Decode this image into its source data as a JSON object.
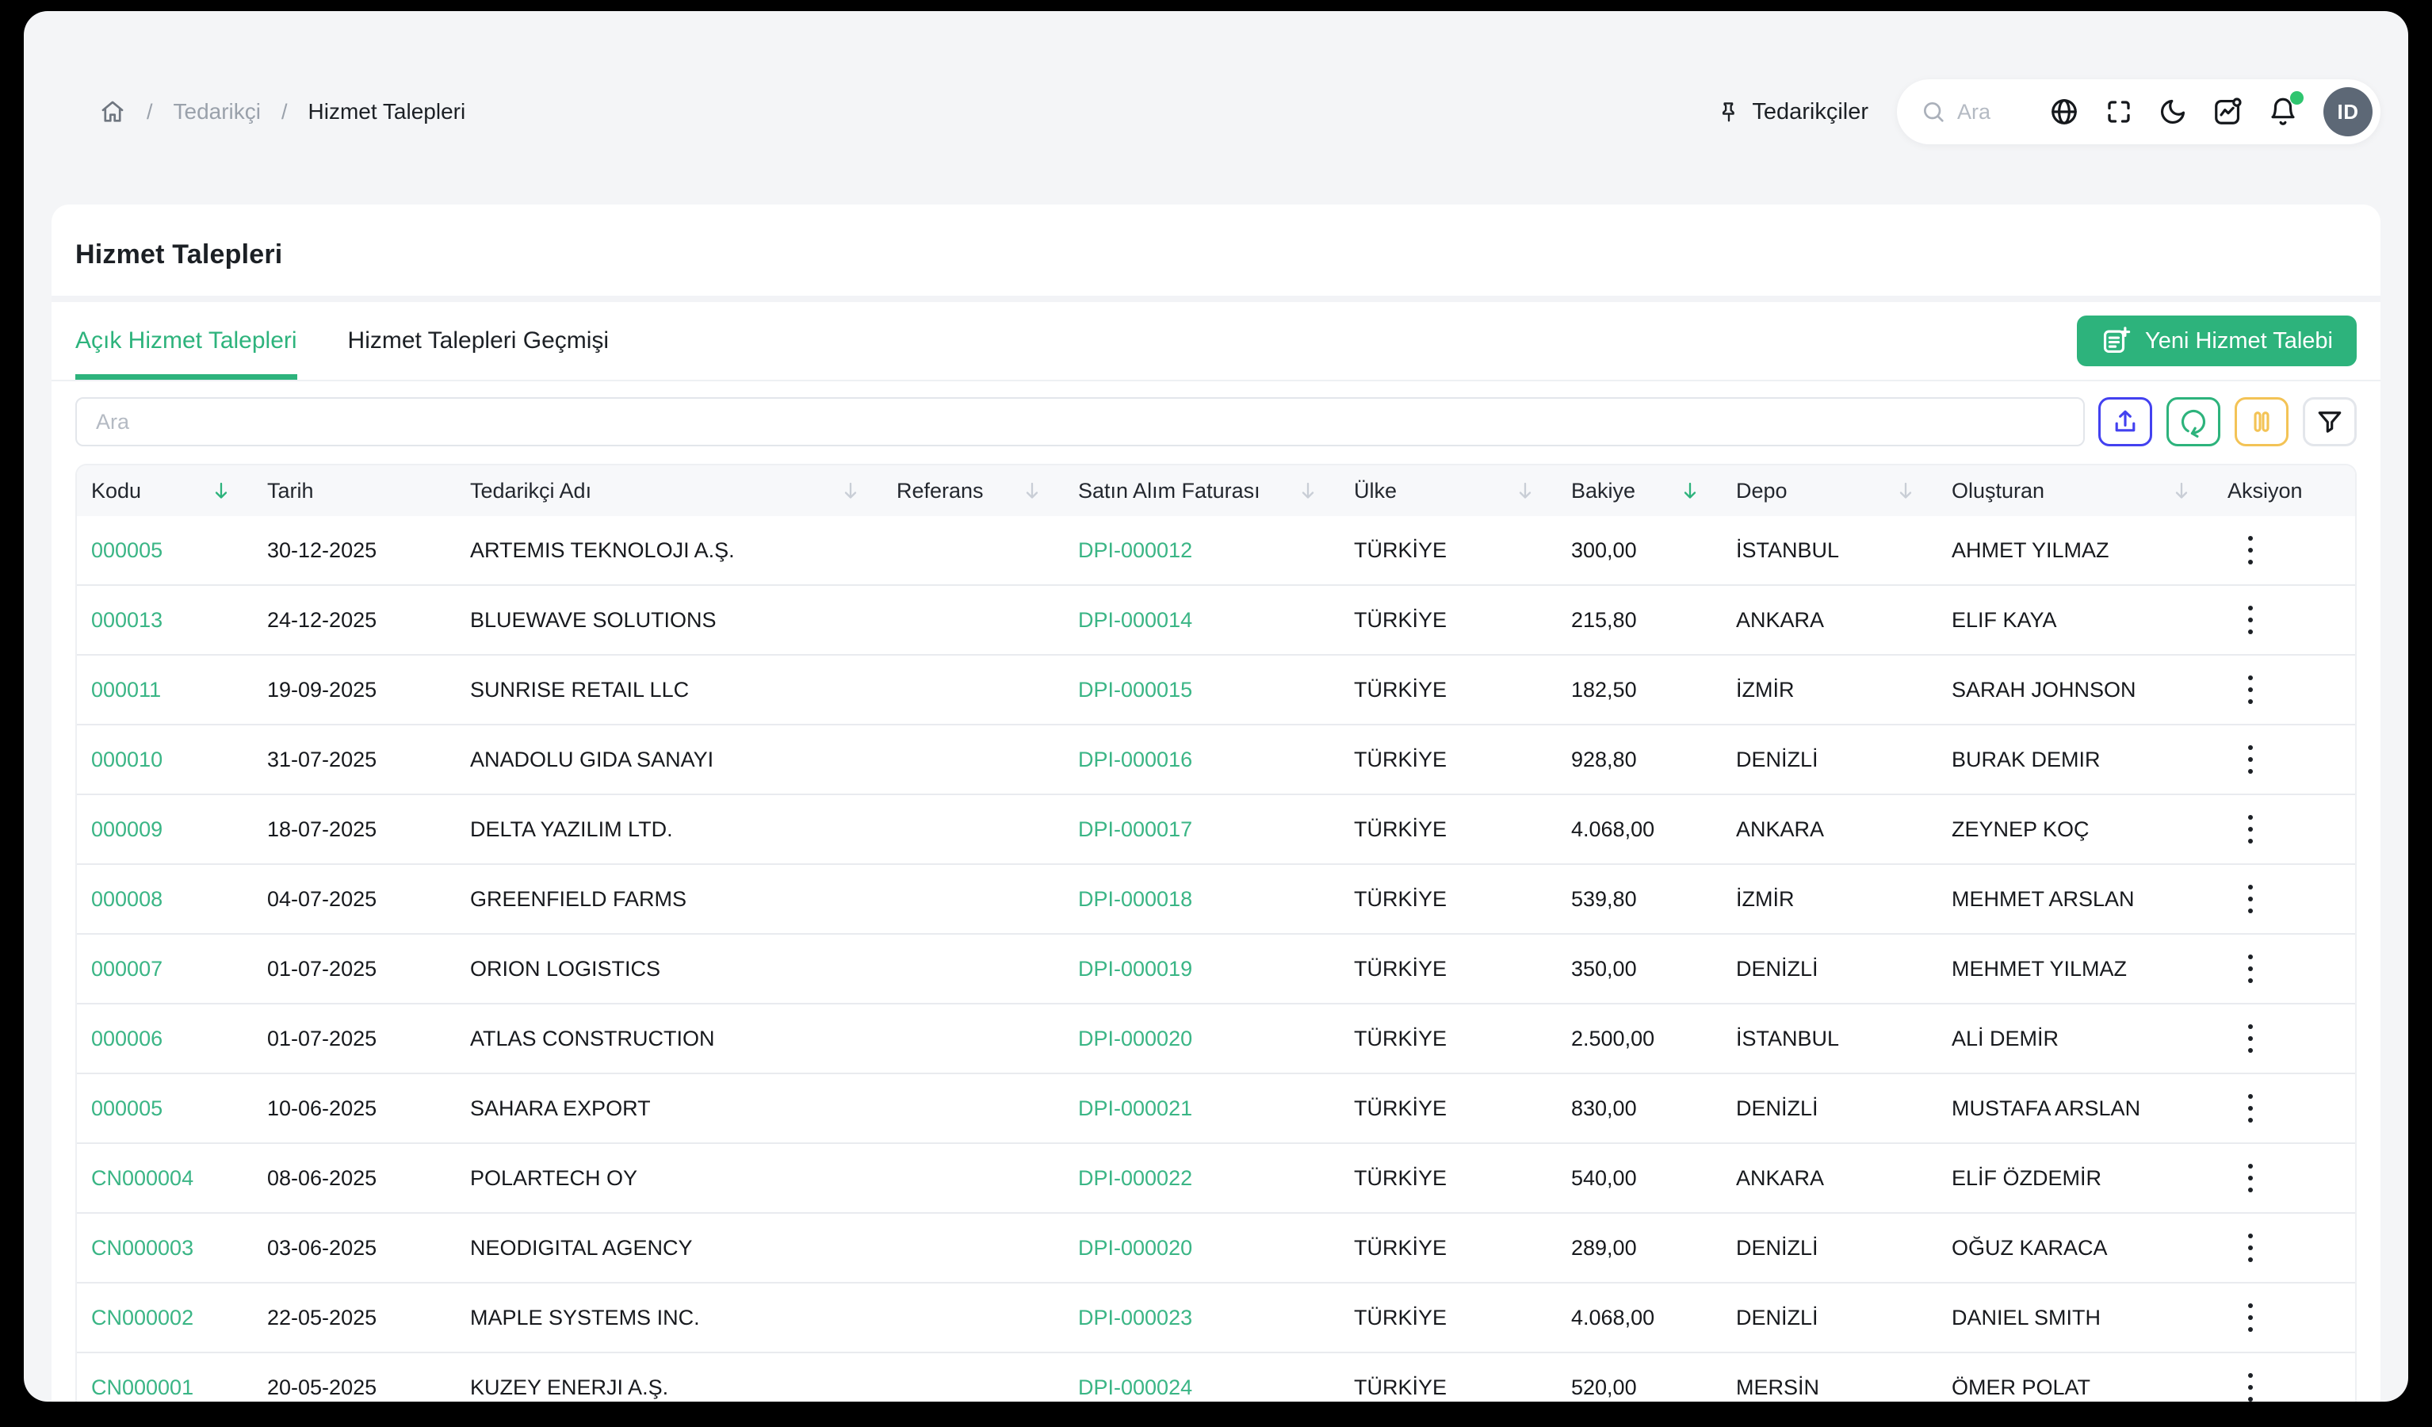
{
  "breadcrumb": {
    "separator": "/",
    "items": [
      {
        "label": "Tedarikçi",
        "current": false
      },
      {
        "label": "Hizmet Talepleri",
        "current": true
      }
    ]
  },
  "topbar": {
    "pinned_label": "Tedarikçiler",
    "search_placeholder": "Ara",
    "avatar_initials": "ID",
    "icons": [
      "search-icon",
      "globe-icon",
      "fullscreen-icon",
      "moon-icon",
      "activity-icon",
      "bell-icon"
    ],
    "notification_dot_color": "#2fc56f"
  },
  "page": {
    "title": "Hizmet Talepleri"
  },
  "tabs": [
    {
      "label": "Açık Hizmet Talepleri",
      "active": true
    },
    {
      "label": "Hizmet Talepleri Geçmişi",
      "active": false
    }
  ],
  "actions": {
    "new_request_label": "Yeni Hizmet Talebi"
  },
  "filters": {
    "search_placeholder": "Ara"
  },
  "toolbar": [
    {
      "name": "upload",
      "icon": "upload-icon",
      "color": "#4341f0"
    },
    {
      "name": "refresh",
      "icon": "refresh-icon",
      "color": "#2db37c"
    },
    {
      "name": "columns",
      "icon": "columns-icon",
      "color": "#f3c356",
      "icon_color": "#f3c356"
    },
    {
      "name": "filter",
      "icon": "funnel-icon",
      "color": "#e3e6eb",
      "icon_color": "#17191d"
    }
  ],
  "colors": {
    "accent_green": "#2db37c",
    "link_green": "#3ab585",
    "sort_inactive": "#c9ced6"
  },
  "table": {
    "columns": [
      {
        "label": "Kodu",
        "sort": "active"
      },
      {
        "label": "Tarih",
        "sort": "none"
      },
      {
        "label": "Tedarikçi Adı",
        "sort": "inactive"
      },
      {
        "label": "Referans",
        "sort": "inactive"
      },
      {
        "label": "Satın Alım Faturası",
        "sort": "inactive"
      },
      {
        "label": "Ülke",
        "sort": "inactive"
      },
      {
        "label": "Bakiye",
        "sort": "active"
      },
      {
        "label": "Depo",
        "sort": "inactive"
      },
      {
        "label": "Oluşturan",
        "sort": "inactive"
      },
      {
        "label": "Aksiyon",
        "sort": "none"
      }
    ],
    "rows": [
      {
        "kodu": "000005",
        "tarih": "30-12-2025",
        "tedarikci": "ARTEMIS TEKNOLOJI A.Ş.",
        "referans": "",
        "fatura": "DPI-000012",
        "ulke": "TÜRKİYE",
        "bakiye": "300,00",
        "depo": "İSTANBUL",
        "olusturan": "AHMET YILMAZ"
      },
      {
        "kodu": "000013",
        "tarih": "24-12-2025",
        "tedarikci": "BLUEWAVE SOLUTIONS",
        "referans": "",
        "fatura": "DPI-000014",
        "ulke": "TÜRKİYE",
        "bakiye": "215,80",
        "depo": "ANKARA",
        "olusturan": "ELIF KAYA"
      },
      {
        "kodu": "000011",
        "tarih": "19-09-2025",
        "tedarikci": "SUNRISE RETAIL LLC",
        "referans": "",
        "fatura": "DPI-000015",
        "ulke": "TÜRKİYE",
        "bakiye": "182,50",
        "depo": "İZMİR",
        "olusturan": "SARAH JOHNSON"
      },
      {
        "kodu": "000010",
        "tarih": "31-07-2025",
        "tedarikci": "ANADOLU GIDA SANAYI",
        "referans": "",
        "fatura": "DPI-000016",
        "ulke": "TÜRKİYE",
        "bakiye": "928,80",
        "depo": "DENİZLİ",
        "olusturan": "BURAK DEMIR"
      },
      {
        "kodu": "000009",
        "tarih": "18-07-2025",
        "tedarikci": "DELTA YAZILIM LTD.",
        "referans": "",
        "fatura": "DPI-000017",
        "ulke": "TÜRKİYE",
        "bakiye": "4.068,00",
        "depo": "ANKARA",
        "olusturan": "ZEYNEP KOÇ"
      },
      {
        "kodu": "000008",
        "tarih": "04-07-2025",
        "tedarikci": "GREENFIELD FARMS",
        "referans": "",
        "fatura": "DPI-000018",
        "ulke": "TÜRKİYE",
        "bakiye": "539,80",
        "depo": "İZMİR",
        "olusturan": "MEHMET ARSLAN"
      },
      {
        "kodu": "000007",
        "tarih": "01-07-2025",
        "tedarikci": "ORION LOGISTICS",
        "referans": "",
        "fatura": "DPI-000019",
        "ulke": "TÜRKİYE",
        "bakiye": "350,00",
        "depo": "DENİZLİ",
        "olusturan": "MEHMET YILMAZ"
      },
      {
        "kodu": "000006",
        "tarih": "01-07-2025",
        "tedarikci": "ATLAS CONSTRUCTION",
        "referans": "",
        "fatura": "DPI-000020",
        "ulke": "TÜRKİYE",
        "bakiye": "2.500,00",
        "depo": "İSTANBUL",
        "olusturan": "ALİ DEMİR"
      },
      {
        "kodu": "000005",
        "tarih": "10-06-2025",
        "tedarikci": "SAHARA EXPORT",
        "referans": "",
        "fatura": "DPI-000021",
        "ulke": "TÜRKİYE",
        "bakiye": "830,00",
        "depo": "DENİZLİ",
        "olusturan": "MUSTAFA ARSLAN"
      },
      {
        "kodu": "CN000004",
        "tarih": "08-06-2025",
        "tedarikci": "POLARTECH OY",
        "referans": "",
        "fatura": "DPI-000022",
        "ulke": "TÜRKİYE",
        "bakiye": "540,00",
        "depo": "ANKARA",
        "olusturan": "ELİF ÖZDEMİR"
      },
      {
        "kodu": "CN000003",
        "tarih": "03-06-2025",
        "tedarikci": "NEODIGITAL AGENCY",
        "referans": "",
        "fatura": "DPI-000020",
        "ulke": "TÜRKİYE",
        "bakiye": "289,00",
        "depo": "DENİZLİ",
        "olusturan": "OĞUZ KARACA"
      },
      {
        "kodu": "CN000002",
        "tarih": "22-05-2025",
        "tedarikci": "MAPLE SYSTEMS INC.",
        "referans": "",
        "fatura": "DPI-000023",
        "ulke": "TÜRKİYE",
        "bakiye": "4.068,00",
        "depo": "DENİZLİ",
        "olusturan": "DANIEL SMITH"
      },
      {
        "kodu": "CN000001",
        "tarih": "20-05-2025",
        "tedarikci": "KUZEY ENERJI A.Ş.",
        "referans": "",
        "fatura": "DPI-000024",
        "ulke": "TÜRKİYE",
        "bakiye": "520,00",
        "depo": "MERSİN",
        "olusturan": "ÖMER POLAT"
      }
    ]
  }
}
